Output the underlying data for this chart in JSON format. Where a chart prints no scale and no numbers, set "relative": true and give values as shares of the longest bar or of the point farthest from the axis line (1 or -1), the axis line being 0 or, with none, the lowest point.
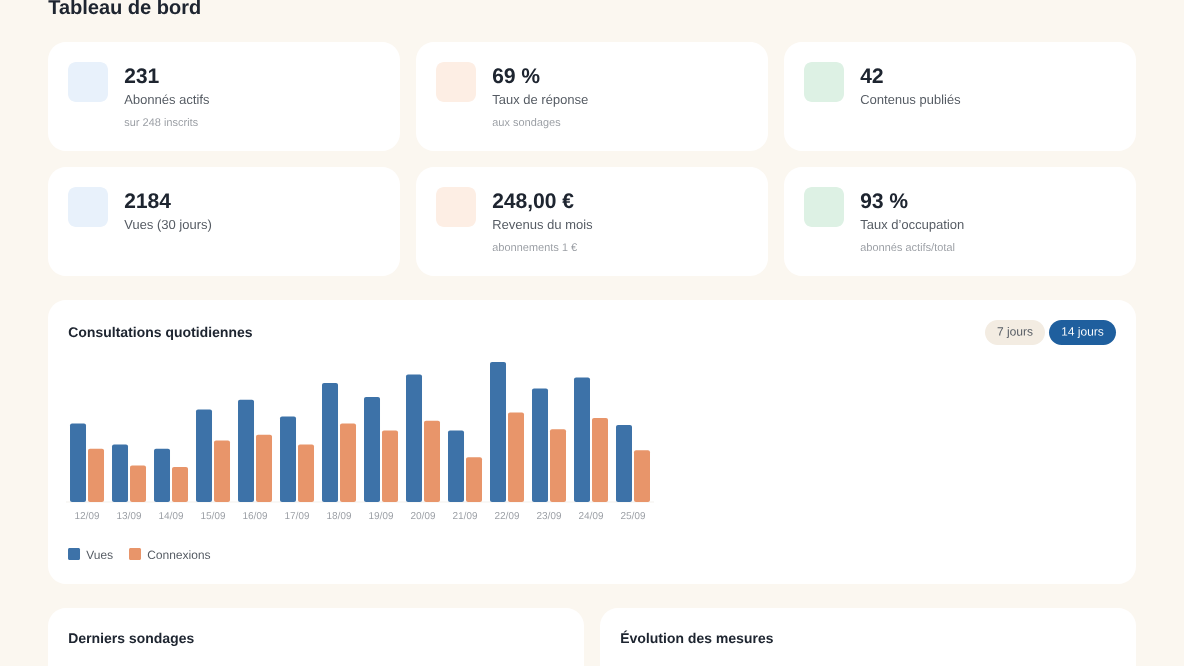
{
  "chart_data": [
    {
      "type": "other",
      "title": "Tableau de bord"
    },
    {
      "type": "other",
      "title": "231",
      "subtitle": "Abonnés actifs",
      "annotations": [
        "sur 248 inscrits"
      ]
    },
    {
      "type": "other",
      "title": "69 %",
      "subtitle": "Taux de réponse",
      "annotations": [
        "aux sondages"
      ]
    },
    {
      "type": "other",
      "title": "42",
      "subtitle": "Contenus publiés"
    },
    {
      "type": "other",
      "title": "2184",
      "subtitle": "Vues (30 jours)"
    },
    {
      "type": "other",
      "title": "248,00 €",
      "subtitle": "Revenus du mois",
      "annotations": [
        "abonnements 1 €"
      ]
    },
    {
      "type": "other",
      "title": "93 %",
      "subtitle": "Taux d’occupation",
      "annotations": [
        "abonnés actifs/total"
      ]
    },
    {
      "type": "bar",
      "title": "Consultations quotidiennes",
      "relative": true,
      "legend": "bottom left",
      "annotations": [
        "7 jours",
        "14 jours"
      ],
      "categories": [
        "12/09",
        "13/09",
        "14/09",
        "15/09",
        "16/09",
        "17/09",
        "18/09",
        "19/09",
        "20/09",
        "21/09",
        "22/09",
        "23/09",
        "24/09",
        "25/09"
      ],
      "series": [
        {
          "name": "Vues",
          "color": "#3d72a8",
          "values": [
            0.56,
            0.41,
            0.38,
            0.66,
            0.73,
            0.61,
            0.85,
            0.75,
            0.91,
            0.51,
            1,
            0.81,
            0.89,
            0.55
          ]
        },
        {
          "name": "Connexions",
          "color": "#e8956a",
          "values": [
            0.38,
            0.26,
            0.25,
            0.44,
            0.48,
            0.41,
            0.56,
            0.51,
            0.58,
            0.32,
            0.64,
            0.52,
            0.6,
            0.37
          ]
        }
      ]
    },
    {
      "type": "other",
      "title": "Derniers sondages"
    },
    {
      "type": "other",
      "title": "Évolution des mesures"
    }
  ]
}
